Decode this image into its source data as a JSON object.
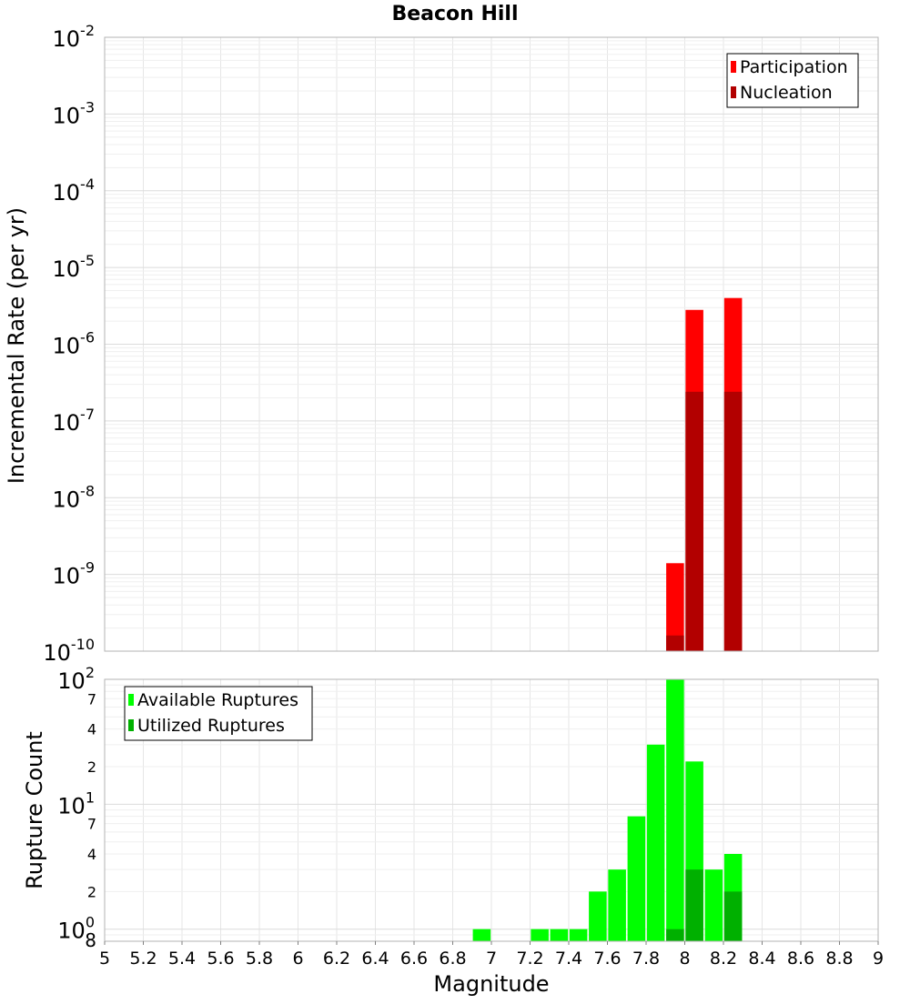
{
  "chart_data": [
    {
      "type": "bar",
      "title": "Beacon Hill",
      "xlabel": "",
      "ylabel": "Incremental Rate (per yr)",
      "yscale": "log",
      "xlim": [
        5,
        9
      ],
      "ylim": [
        1e-10,
        0.01
      ],
      "grid": true,
      "legend_position": "top-right",
      "y_tick_exponents": [
        -10,
        -9,
        -8,
        -7,
        -6,
        -5,
        -4,
        -3,
        -2
      ],
      "bar_width": 0.1,
      "series": [
        {
          "name": "Participation",
          "color": "#ff0000",
          "x": [
            7.95,
            8.05,
            8.25
          ],
          "values": [
            1.4e-09,
            2.8e-06,
            4e-06
          ]
        },
        {
          "name": "Nucleation",
          "color": "#b20000",
          "x": [
            7.95,
            8.05,
            8.25
          ],
          "values": [
            1.6e-10,
            2.4e-07,
            2.4e-07
          ]
        }
      ]
    },
    {
      "type": "bar",
      "title": "",
      "xlabel": "Magnitude",
      "ylabel": "Rupture Count",
      "yscale": "log",
      "xlim": [
        5,
        9
      ],
      "ylim": [
        0.8,
        100
      ],
      "grid": true,
      "legend_position": "top-left",
      "x_ticks": [
        "5",
        "5.2",
        "5.4",
        "5.6",
        "5.8",
        "6",
        "6.2",
        "6.4",
        "6.6",
        "6.8",
        "7",
        "7.2",
        "7.4",
        "7.6",
        "7.8",
        "8",
        "8.2",
        "8.4",
        "8.6",
        "8.8",
        "9"
      ],
      "y_major_exponents": [
        0,
        1,
        2
      ],
      "y_minor_labels": [
        {
          "value": 0.8,
          "label": "8"
        },
        {
          "value": 2,
          "label": "2"
        },
        {
          "value": 4,
          "label": "4"
        },
        {
          "value": 7,
          "label": "7"
        },
        {
          "value": 20,
          "label": "2"
        },
        {
          "value": 40,
          "label": "4"
        },
        {
          "value": 70,
          "label": "7"
        }
      ],
      "bar_width": 0.1,
      "series": [
        {
          "name": "Available Ruptures",
          "color": "#00ff00",
          "x": [
            6.95,
            7.25,
            7.35,
            7.45,
            7.55,
            7.65,
            7.75,
            7.85,
            7.95,
            8.05,
            8.15,
            8.25
          ],
          "values": [
            1,
            1,
            1,
            1,
            2,
            3,
            8,
            30,
            100,
            22,
            3,
            4
          ]
        },
        {
          "name": "Utilized Ruptures",
          "color": "#00b000",
          "x": [
            7.95,
            8.05,
            8.25
          ],
          "values": [
            1,
            3,
            2
          ]
        }
      ]
    }
  ]
}
